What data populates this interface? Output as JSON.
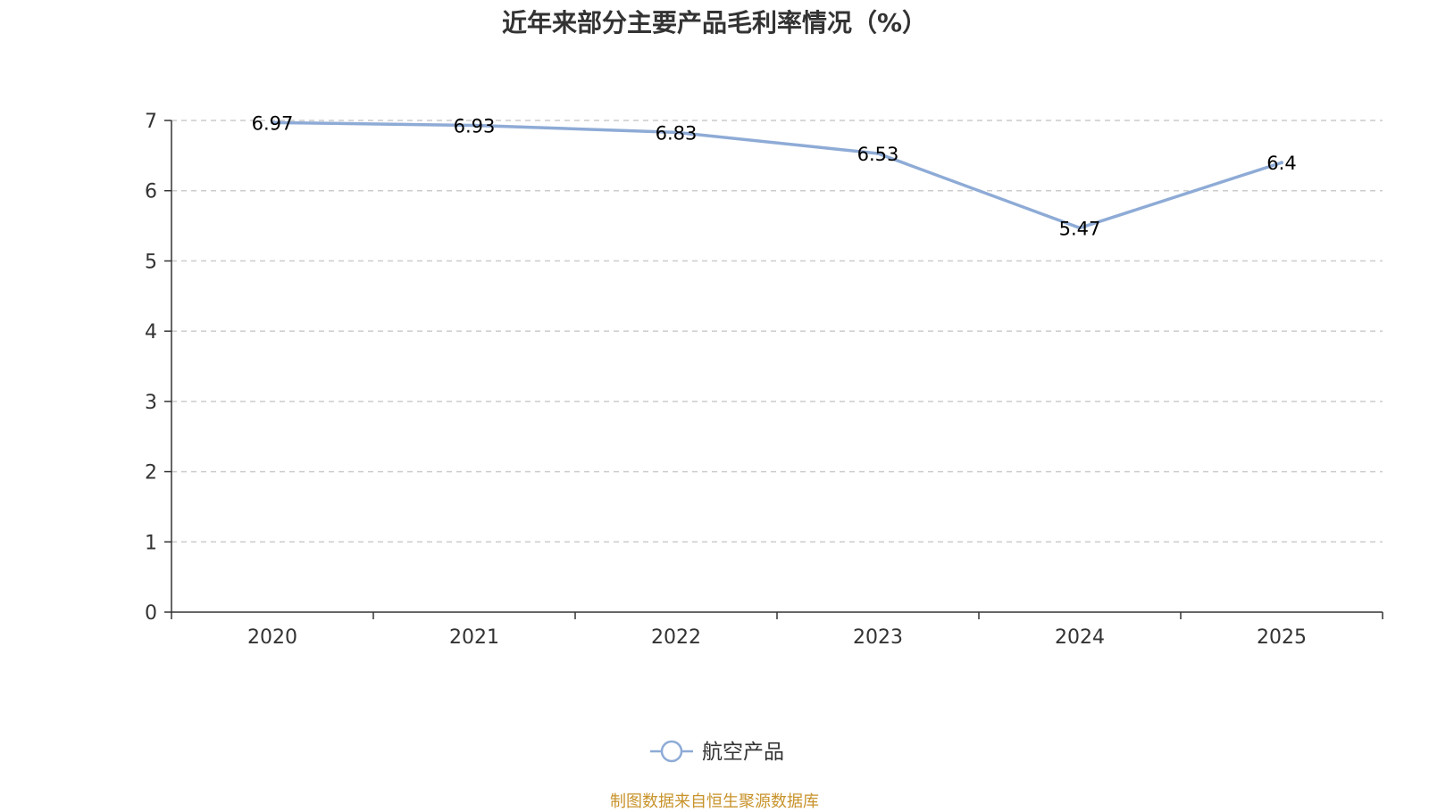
{
  "title": "近年来部分主要产品毛利率情况（%）",
  "source": "制图数据来自恒生聚源数据库",
  "colors": {
    "series": "#8eabd6",
    "grid": "#cccccc",
    "axis": "#333333",
    "source": "#c8932b"
  },
  "chart_data": {
    "type": "line",
    "title": "近年来部分主要产品毛利率情况（%）",
    "categories": [
      "2020",
      "2021",
      "2022",
      "2023",
      "2024",
      "2025"
    ],
    "series": [
      {
        "name": "航空产品",
        "values": [
          6.97,
          6.93,
          6.83,
          6.53,
          5.47,
          6.4
        ]
      }
    ],
    "data_labels": [
      "6.97",
      "6.93",
      "6.83",
      "6.53",
      "5.47",
      "6.4"
    ],
    "y_ticks": [
      "0",
      "1",
      "2",
      "3",
      "4",
      "5",
      "6",
      "7"
    ],
    "ylim": [
      0,
      7
    ],
    "grid": true,
    "grid_style": "dashed",
    "legend_position": "bottom-center"
  }
}
